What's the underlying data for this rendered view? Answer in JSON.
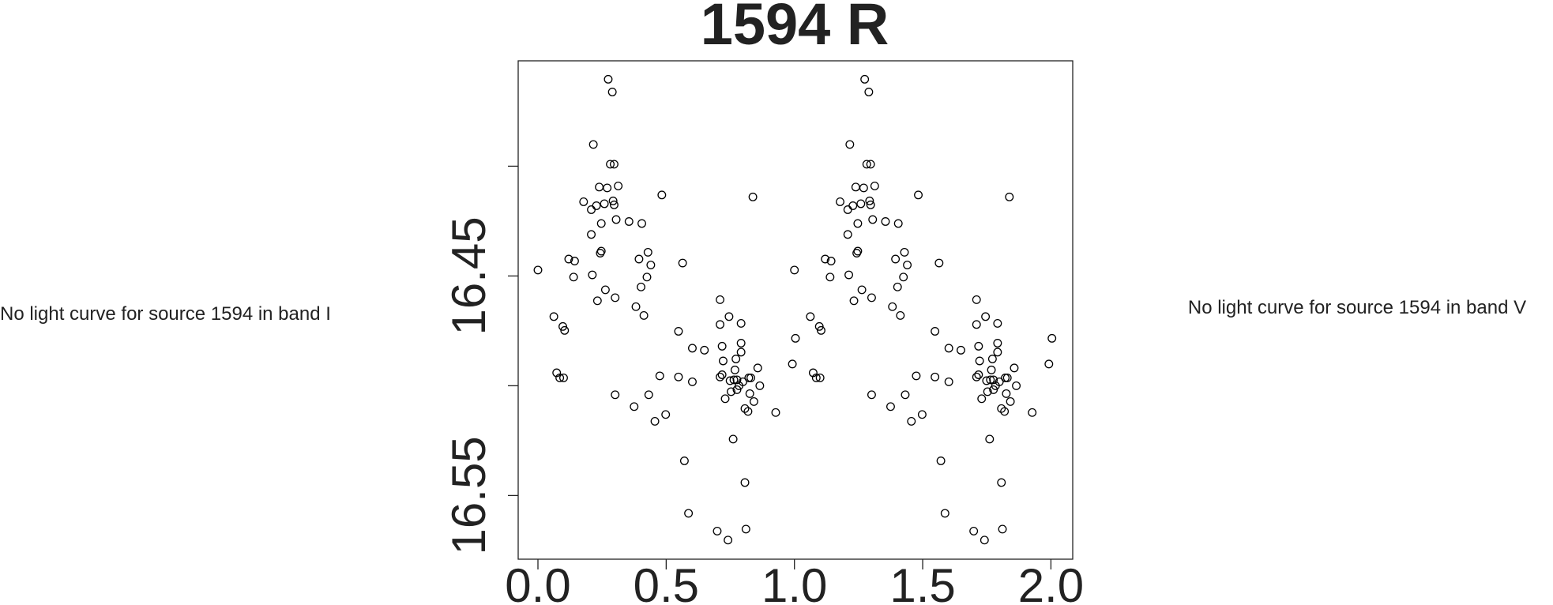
{
  "chart_data": {
    "type": "scatter",
    "title": "1594 R",
    "annotations": [
      "No light curve for source 1594 in band I",
      "No light curve for source 1594 in band V"
    ],
    "xlim": [
      -0.077,
      2.085
    ],
    "ylim": [
      16.579,
      16.352
    ],
    "xticks": [
      {
        "value": 0,
        "label": "0.0"
      },
      {
        "value": 0.5,
        "label": "0.5"
      },
      {
        "value": 1,
        "label": "1.0"
      },
      {
        "value": 1.5,
        "label": "1.5"
      },
      {
        "value": 2,
        "label": "2.0"
      }
    ],
    "yticks": [
      16.45,
      16.55
    ],
    "yminor_ticks": [
      16.4,
      16.5
    ],
    "color": "#000000",
    "x": [
      0,
      0.062,
      0.097,
      0.104,
      0.073,
      0.085,
      0.1,
      0.12,
      0.143,
      0.139,
      0.178,
      0.208,
      0.208,
      0.216,
      0.212,
      0.228,
      0.232,
      0.239,
      0.243,
      0.247,
      0.247,
      0.259,
      0.263,
      0.27,
      0.282,
      0.29,
      0.274,
      0.297,
      0.293,
      0.297,
      0.301,
      0.305,
      0.313,
      0.301,
      0.355,
      0.375,
      0.382,
      0.394,
      0.405,
      0.402,
      0.413,
      0.425,
      0.432,
      0.429,
      0.44,
      0.456,
      0.475,
      0.483,
      0.498,
      0.548,
      0.548,
      0.571,
      0.564,
      0.587,
      0.602,
      0.602,
      0.649,
      0.699,
      0.71,
      0.71,
      0.718,
      0.718,
      0.722,
      0.71,
      0.73,
      0.741,
      0.745,
      0.749,
      0.753,
      0.761,
      0.764,
      0.768,
      0.772,
      0.776,
      0.776,
      0.784,
      0.792,
      0.792,
      0.792,
      0.799,
      0.807,
      0.807,
      0.811,
      0.819,
      0.822,
      0.83,
      0.826,
      0.838,
      0.842,
      0.857,
      0.865,
      0.927,
      0.992,
      1.004,
      1,
      1.062,
      1.097,
      1.104,
      1.073,
      1.085,
      1.1,
      1.12,
      1.143,
      1.139,
      1.178,
      1.208,
      1.208,
      1.216,
      1.212,
      1.228,
      1.232,
      1.239,
      1.243,
      1.247,
      1.247,
      1.259,
      1.263,
      1.27,
      1.282,
      1.29,
      1.274,
      1.297,
      1.293,
      1.297,
      1.301,
      1.305,
      1.313,
      1.301,
      1.355,
      1.375,
      1.382,
      1.394,
      1.405,
      1.402,
      1.413,
      1.425,
      1.432,
      1.429,
      1.44,
      1.456,
      1.475,
      1.483,
      1.498,
      1.548,
      1.548,
      1.571,
      1.564,
      1.587,
      1.602,
      1.602,
      1.649,
      1.699,
      1.71,
      1.71,
      1.718,
      1.718,
      1.722,
      1.71,
      1.73,
      1.741,
      1.745,
      1.749,
      1.753,
      1.761,
      1.764,
      1.768,
      1.772,
      1.776,
      1.776,
      1.784,
      1.792,
      1.792,
      1.792,
      1.799,
      1.807,
      1.807,
      1.811,
      1.819,
      1.822,
      1.83,
      1.826,
      1.838,
      1.842,
      1.857,
      1.865,
      1.927,
      1.992,
      2.004
    ],
    "y": [
      16.4473,
      16.4685,
      16.473,
      16.4748,
      16.4941,
      16.4964,
      16.4964,
      16.4423,
      16.4432,
      16.4505,
      16.4162,
      16.4198,
      16.4311,
      16.3901,
      16.4495,
      16.418,
      16.4613,
      16.4095,
      16.4396,
      16.4387,
      16.4261,
      16.4171,
      16.4563,
      16.4099,
      16.3991,
      16.3662,
      16.3604,
      16.3991,
      16.4158,
      16.4176,
      16.4599,
      16.4243,
      16.409,
      16.5041,
      16.4252,
      16.5095,
      16.464,
      16.4423,
      16.4261,
      16.455,
      16.468,
      16.4505,
      16.5041,
      16.4392,
      16.445,
      16.5162,
      16.4955,
      16.4131,
      16.5131,
      16.4752,
      16.496,
      16.5342,
      16.4441,
      16.5581,
      16.4982,
      16.4829,
      16.4838,
      16.5662,
      16.4608,
      16.4721,
      16.482,
      16.495,
      16.4887,
      16.496,
      16.5059,
      16.5703,
      16.4685,
      16.4977,
      16.5027,
      16.5243,
      16.4973,
      16.4928,
      16.4878,
      16.5018,
      16.4973,
      16.5,
      16.4716,
      16.4847,
      16.4806,
      16.4982,
      16.5441,
      16.5104,
      16.5653,
      16.5117,
      16.4964,
      16.4964,
      16.5036,
      16.414,
      16.5072,
      16.4919,
      16.5,
      16.5122,
      16.4901,
      16.4784,
      16.4473,
      16.4685,
      16.473,
      16.4748,
      16.4941,
      16.4964,
      16.4964,
      16.4423,
      16.4432,
      16.4505,
      16.4162,
      16.4198,
      16.4311,
      16.3901,
      16.4495,
      16.418,
      16.4613,
      16.4095,
      16.4396,
      16.4387,
      16.4261,
      16.4171,
      16.4563,
      16.4099,
      16.3991,
      16.3662,
      16.3604,
      16.3991,
      16.4158,
      16.4176,
      16.4599,
      16.4243,
      16.409,
      16.5041,
      16.4252,
      16.5095,
      16.464,
      16.4423,
      16.4261,
      16.455,
      16.468,
      16.4505,
      16.5041,
      16.4392,
      16.445,
      16.5162,
      16.4955,
      16.4131,
      16.5131,
      16.4752,
      16.496,
      16.5342,
      16.4441,
      16.5581,
      16.4982,
      16.4829,
      16.4838,
      16.5662,
      16.4608,
      16.4721,
      16.482,
      16.495,
      16.4887,
      16.496,
      16.5059,
      16.5703,
      16.4685,
      16.4977,
      16.5027,
      16.5243,
      16.4973,
      16.4928,
      16.4878,
      16.5018,
      16.4973,
      16.5,
      16.4716,
      16.4847,
      16.4806,
      16.4982,
      16.5441,
      16.5104,
      16.5653,
      16.5117,
      16.4964,
      16.4964,
      16.5036,
      16.414,
      16.5072,
      16.4919,
      16.5,
      16.5122,
      16.4901,
      16.4784
    ]
  }
}
